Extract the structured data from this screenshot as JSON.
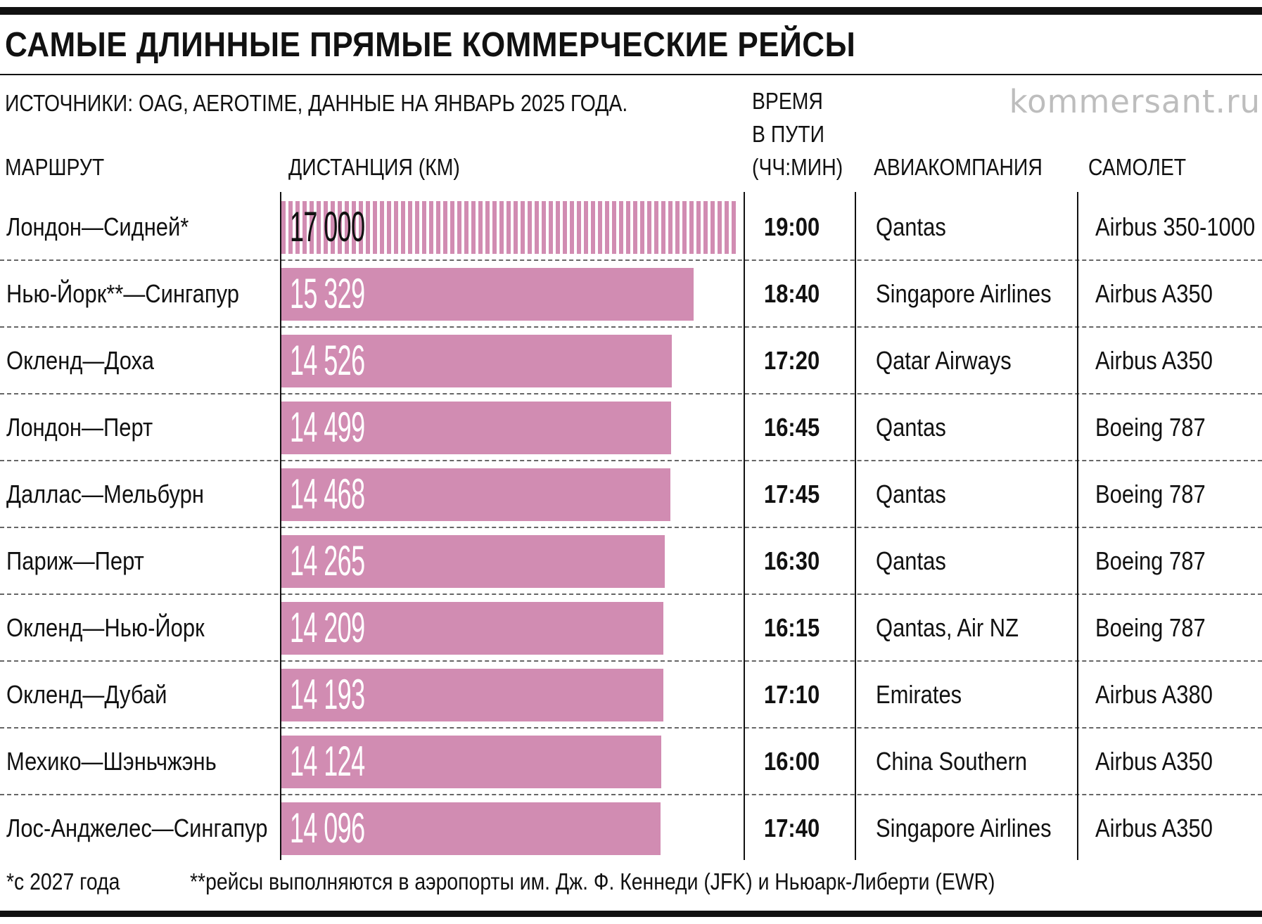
{
  "title": "САМЫЕ ДЛИННЫЕ ПРЯМЫЕ КОММЕРЧЕСКИЕ РЕЙСЫ",
  "source": "ИСТОЧНИКИ: OAG, AEROTIME, ДАННЫЕ НА ЯНВАРЬ 2025 ГОДА.",
  "brand": "kommersant.ru",
  "headers": {
    "route": "МАРШРУТ",
    "distance": "ДИСТАНЦИЯ (КМ)",
    "time_line1": "ВРЕМЯ",
    "time_line2": "В ПУТИ",
    "time_line3": "(ЧЧ:МИН)",
    "airline": "АВИАКОМПАНИЯ",
    "aircraft": "САМОЛЕТ"
  },
  "chart_data": {
    "type": "bar",
    "orientation": "horizontal",
    "categories": [
      "Лондон—Сидней*",
      "Нью-Йорк**—Сингапур",
      "Окленд—Доха",
      "Лондон—Перт",
      "Даллас—Мельбурн",
      "Париж—Перт",
      "Окленд—Нью-Йорк",
      "Окленд—Дубай",
      "Мехико—Шэньчжэнь",
      "Лос-Анджелес—Сингапур"
    ],
    "values": [
      17000,
      15329,
      14526,
      14499,
      14468,
      14265,
      14209,
      14193,
      14124,
      14096
    ],
    "value_labels": [
      "17 000",
      "15 329",
      "14 526",
      "14 499",
      "14 468",
      "14 265",
      "14 209",
      "14 193",
      "14 124",
      "14 096"
    ],
    "hatched": [
      true,
      false,
      false,
      false,
      false,
      false,
      false,
      false,
      false,
      false
    ],
    "xlim": [
      0,
      17000
    ],
    "bar_color": "#d18cb2",
    "title": "САМЫЕ ДЛИННЫЕ ПРЯМЫЕ КОММЕРЧЕСКИЕ РЕЙСЫ",
    "xlabel": "ДИСТАНЦИЯ (КМ)",
    "ylabel": "МАРШРУТ",
    "grid": false
  },
  "rows": [
    {
      "route": "Лондон—Сидней*",
      "distance": "17 000",
      "time": "19:00",
      "airline": "Qantas",
      "aircraft": "Airbus 350-1000"
    },
    {
      "route": "Нью-Йорк**—Сингапур",
      "distance": "15 329",
      "time": "18:40",
      "airline": "Singapore Airlines",
      "aircraft": "Airbus A350"
    },
    {
      "route": "Окленд—Доха",
      "distance": "14 526",
      "time": "17:20",
      "airline": "Qatar Airways",
      "aircraft": "Airbus A350"
    },
    {
      "route": "Лондон—Перт",
      "distance": "14 499",
      "time": "16:45",
      "airline": "Qantas",
      "aircraft": "Boeing 787"
    },
    {
      "route": "Даллас—Мельбурн",
      "distance": "14 468",
      "time": "17:45",
      "airline": "Qantas",
      "aircraft": "Boeing 787"
    },
    {
      "route": "Париж—Перт",
      "distance": "14 265",
      "time": "16:30",
      "airline": "Qantas",
      "aircraft": "Boeing 787"
    },
    {
      "route": "Окленд—Нью-Йорк",
      "distance": "14 209",
      "time": "16:15",
      "airline": "Qantas, Air NZ",
      "aircraft": "Boeing 787"
    },
    {
      "route": "Окленд—Дубай",
      "distance": "14 193",
      "time": "17:10",
      "airline": "Emirates",
      "aircraft": "Airbus A380"
    },
    {
      "route": "Мехико—Шэньчжэнь",
      "distance": "14 124",
      "time": "16:00",
      "airline": "China Southern",
      "aircraft": "Airbus A350"
    },
    {
      "route": "Лос-Анджелес—Сингапур",
      "distance": "14 096",
      "time": "17:40",
      "airline": "Singapore Airlines",
      "aircraft": "Airbus A350"
    }
  ],
  "footnotes": {
    "one": "*с 2027 года",
    "two": "**рейсы выполняются в аэропорты им. Дж. Ф. Кеннеди (JFK) и Ньюарк-Либерти (EWR)"
  }
}
